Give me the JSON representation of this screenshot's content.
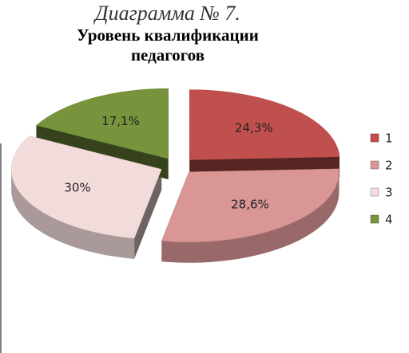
{
  "chart_data": {
    "type": "pie3d",
    "title": "Диаграмма № 7.",
    "subtitle": "Уровень квалификации педагогов",
    "categories": [
      "1",
      "2",
      "3",
      "4"
    ],
    "values": [
      24.3,
      28.6,
      30,
      17.1
    ],
    "value_labels": [
      "24,3%",
      "28,6%",
      "30%",
      "17,1%"
    ],
    "colors": [
      "#c0504d",
      "#d99694",
      "#f2dcdb",
      "#77933c"
    ],
    "legend": "right"
  }
}
